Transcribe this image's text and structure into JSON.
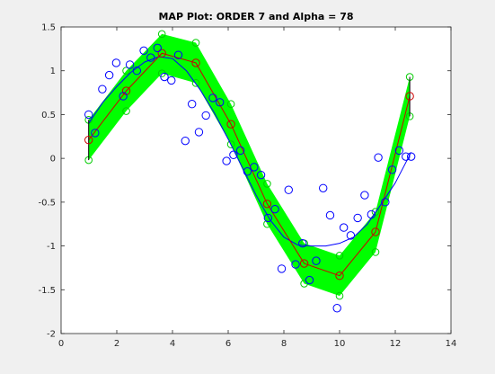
{
  "chart_data": {
    "type": "line",
    "title": "MAP Plot: ORDER 7 and Alpha = 78",
    "xlabel": "",
    "ylabel": "",
    "xlim": [
      0,
      14
    ],
    "ylim": [
      -2,
      1.5
    ],
    "xticks": [
      0,
      2,
      4,
      6,
      8,
      10,
      12,
      14
    ],
    "yticks": [
      -2,
      -1.5,
      -1,
      -0.5,
      0,
      0.5,
      1,
      1.5
    ],
    "grid": false,
    "legend": "none",
    "colors": {
      "band": "#00ff00",
      "band_edge_markers": "#00cc00",
      "mean_line": "#cc0000",
      "fit_curve": "#0000ff",
      "observations": "#0000ff",
      "axes_background": "#ffffff",
      "figure_background": "#f0f0f0"
    },
    "series": [
      {
        "role": "observations",
        "marker": "circle",
        "x": [
          0.99,
          1.22,
          1.48,
          1.73,
          1.98,
          2.23,
          2.47,
          2.72,
          2.97,
          3.22,
          3.46,
          3.71,
          3.96,
          4.21,
          4.46,
          4.7,
          4.95,
          5.2,
          5.45,
          5.7,
          5.94,
          6.19,
          6.44,
          6.69,
          6.93,
          7.18,
          7.43,
          7.68,
          7.92,
          8.17,
          8.42,
          8.67,
          8.92,
          9.16,
          9.41,
          9.66,
          9.91,
          10.15,
          10.4,
          10.65,
          10.9,
          11.14,
          11.39,
          11.64,
          11.89,
          12.14,
          12.38,
          12.57
        ],
        "y": [
          0.5,
          0.29,
          0.79,
          0.95,
          1.09,
          0.71,
          1.07,
          1.0,
          1.23,
          1.15,
          1.26,
          0.93,
          0.89,
          1.18,
          0.2,
          0.62,
          0.3,
          0.49,
          0.69,
          0.64,
          -0.03,
          0.04,
          0.09,
          -0.15,
          -0.1,
          -0.19,
          -0.68,
          -0.58,
          -1.26,
          -0.36,
          -1.21,
          -0.97,
          -1.39,
          -1.17,
          -0.34,
          -0.65,
          -1.71,
          -0.79,
          -0.88,
          -0.68,
          -0.42,
          -0.64,
          0.01,
          -0.5,
          -0.13,
          0.09,
          0.02,
          0.02
        ]
      },
      {
        "role": "fit-curve",
        "x": [
          0.99,
          1.5,
          2.0,
          2.5,
          3.0,
          3.5,
          4.0,
          4.5,
          5.0,
          5.5,
          6.0,
          6.5,
          7.0,
          7.5,
          8.0,
          8.5,
          9.0,
          9.5,
          10.0,
          10.5,
          11.0,
          11.5,
          12.0,
          12.57
        ],
        "y": [
          0.4,
          0.64,
          0.82,
          0.98,
          1.1,
          1.16,
          1.14,
          1.0,
          0.78,
          0.52,
          0.22,
          -0.1,
          -0.42,
          -0.7,
          -0.9,
          -0.99,
          -1.0,
          -1.0,
          -0.97,
          -0.9,
          -0.75,
          -0.52,
          -0.28,
          0.07
        ]
      },
      {
        "role": "map-mean",
        "marker": "circle",
        "x": [
          0.99,
          2.34,
          3.62,
          4.84,
          6.1,
          7.4,
          8.73,
          10.0,
          11.29,
          12.52
        ],
        "y": [
          0.21,
          0.77,
          1.2,
          1.09,
          0.39,
          -0.52,
          -1.2,
          -1.34,
          -0.84,
          0.71
        ]
      },
      {
        "role": "band-upper",
        "marker": "circle",
        "x": [
          0.99,
          2.34,
          3.62,
          4.84,
          6.1,
          7.4,
          8.73,
          10.0,
          11.29,
          12.52
        ],
        "y": [
          0.44,
          1.0,
          1.42,
          1.32,
          0.62,
          -0.29,
          -0.97,
          -1.11,
          -0.61,
          0.93
        ]
      },
      {
        "role": "band-lower",
        "marker": "circle",
        "x": [
          0.99,
          2.34,
          3.62,
          4.84,
          6.1,
          7.4,
          8.73,
          10.0,
          11.29,
          12.52
        ],
        "y": [
          -0.02,
          0.54,
          0.97,
          0.86,
          0.16,
          -0.75,
          -1.43,
          -1.57,
          -1.07,
          0.48
        ]
      }
    ]
  }
}
